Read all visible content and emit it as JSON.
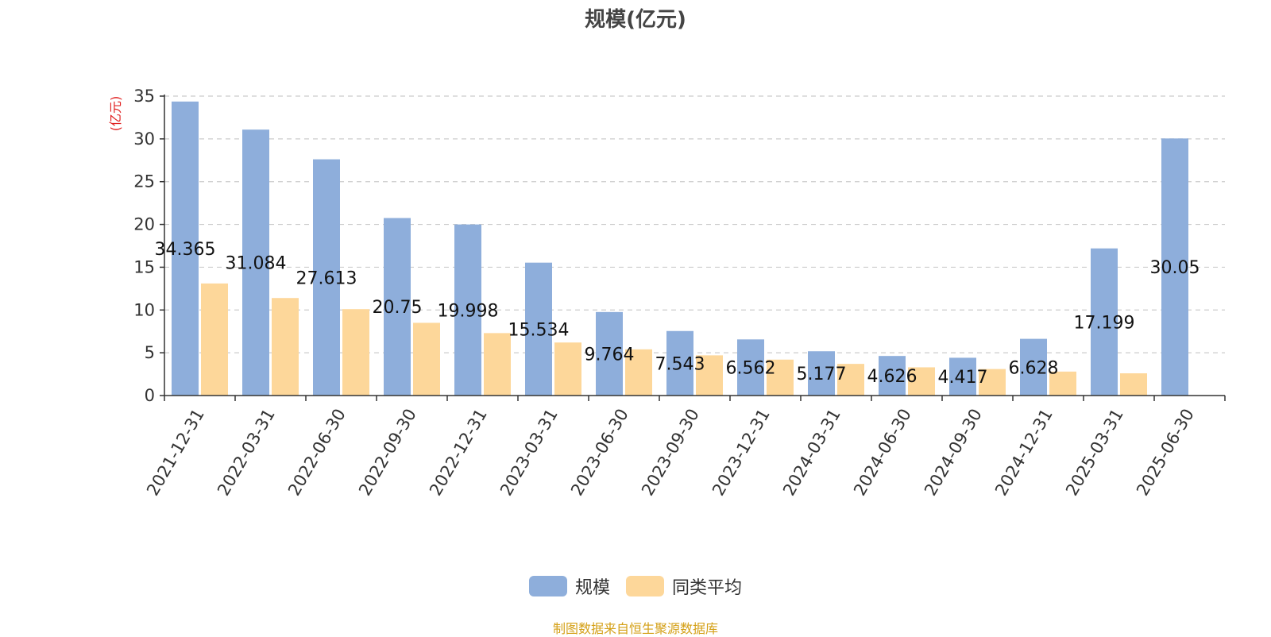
{
  "chart_data": {
    "type": "bar",
    "title": "规模(亿元)",
    "ylabel": "(亿元)",
    "xlabel": "",
    "ylim": [
      0,
      35
    ],
    "yticks": [
      0,
      5,
      10,
      15,
      20,
      25,
      30,
      35
    ],
    "grid": true,
    "legend_position": "bottom",
    "categories": [
      "2021-12-31",
      "2022-03-31",
      "2022-06-30",
      "2022-09-30",
      "2022-12-31",
      "2023-03-31",
      "2023-06-30",
      "2023-09-30",
      "2023-12-31",
      "2024-03-31",
      "2024-06-30",
      "2024-09-30",
      "2024-12-31",
      "2025-03-31",
      "2025-06-30"
    ],
    "series": [
      {
        "name": "规模",
        "color": "#8eaedb",
        "values": [
          34.365,
          31.084,
          27.613,
          20.75,
          19.998,
          15.534,
          9.764,
          7.543,
          6.562,
          5.177,
          4.626,
          4.417,
          6.628,
          17.199,
          30.05
        ],
        "labels": [
          "34.365",
          "31.084",
          "27.613",
          "20.75",
          "19.998",
          "15.534",
          "9.764",
          "7.543",
          "6.562",
          "5.177",
          "4.626",
          "4.417",
          "6.628",
          "17.199",
          "30.05"
        ]
      },
      {
        "name": "同类平均",
        "color": "#fdd79a",
        "values": [
          13.1,
          11.4,
          10.1,
          8.5,
          7.3,
          6.2,
          5.4,
          4.7,
          4.2,
          3.7,
          3.3,
          3.1,
          2.8,
          2.6,
          null
        ]
      }
    ]
  },
  "source_note": "制图数据来自恒生聚源数据库"
}
